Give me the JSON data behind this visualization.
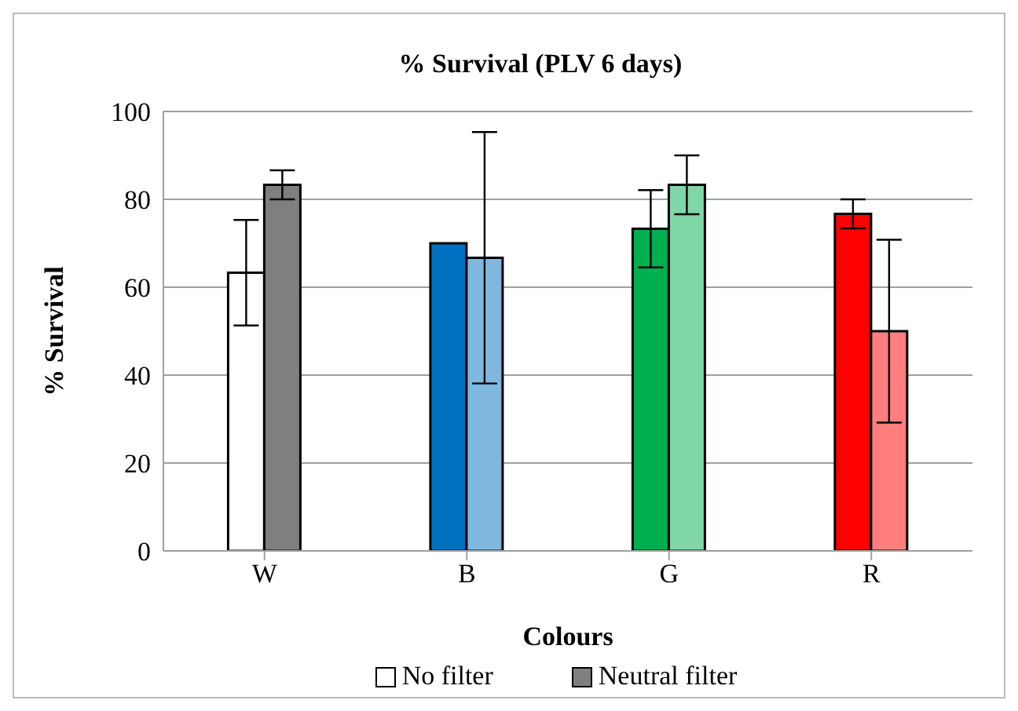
{
  "chart_data": {
    "type": "bar",
    "title": "% Survival (PLV 6 days)",
    "xlabel": "Colours",
    "ylabel": "% Survival",
    "categories": [
      "W",
      "B",
      "G",
      "R"
    ],
    "series": [
      {
        "name": "No filter",
        "color": "#ffffff",
        "colors": [
          "#ffffff",
          "#0070c0",
          "#00b050",
          "#ff0000"
        ],
        "values": [
          63.3,
          70,
          73.3,
          76.7
        ],
        "errors": [
          12,
          null,
          8.8,
          3.3
        ]
      },
      {
        "name": "Neutral filter",
        "color": "#7f7f7f",
        "colors": [
          "#7f7f7f",
          "#7fb7df",
          "#7fd7a7",
          "#ff7f7f"
        ],
        "values": [
          83.3,
          66.7,
          83.3,
          50
        ],
        "errors": [
          3.3,
          28.6,
          6.7,
          20.8
        ]
      }
    ],
    "ylim": [
      0,
      100
    ],
    "yticks": [
      0,
      20,
      40,
      60,
      80,
      100
    ],
    "grid": "y",
    "legend": "bottom"
  }
}
